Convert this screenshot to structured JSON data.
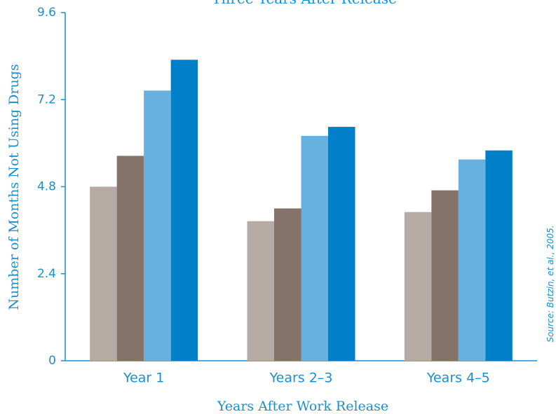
{
  "chart_data": {
    "type": "bar",
    "title": "Three Years After Release",
    "xlabel": "Years After Work Release",
    "ylabel": "Number of Months Not Using Drugs",
    "source": "Source: Butzin, et al., 2005.",
    "categories": [
      "Year 1",
      "Years 2–3",
      "Years 4–5"
    ],
    "ylim": [
      0,
      9.6
    ],
    "yticks": [
      "0",
      "2.4",
      "4.8",
      "7.2",
      "9.6"
    ],
    "grid": false,
    "series": [
      {
        "color": "#b5aaa4",
        "values": [
          4.8,
          3.85,
          4.1
        ]
      },
      {
        "color": "#857268",
        "values": [
          5.65,
          4.2,
          4.7
        ]
      },
      {
        "color": "#66b1dd",
        "values": [
          7.45,
          6.2,
          5.55
        ]
      },
      {
        "color": "#0080c8",
        "values": [
          8.3,
          6.45,
          5.8
        ]
      }
    ]
  }
}
